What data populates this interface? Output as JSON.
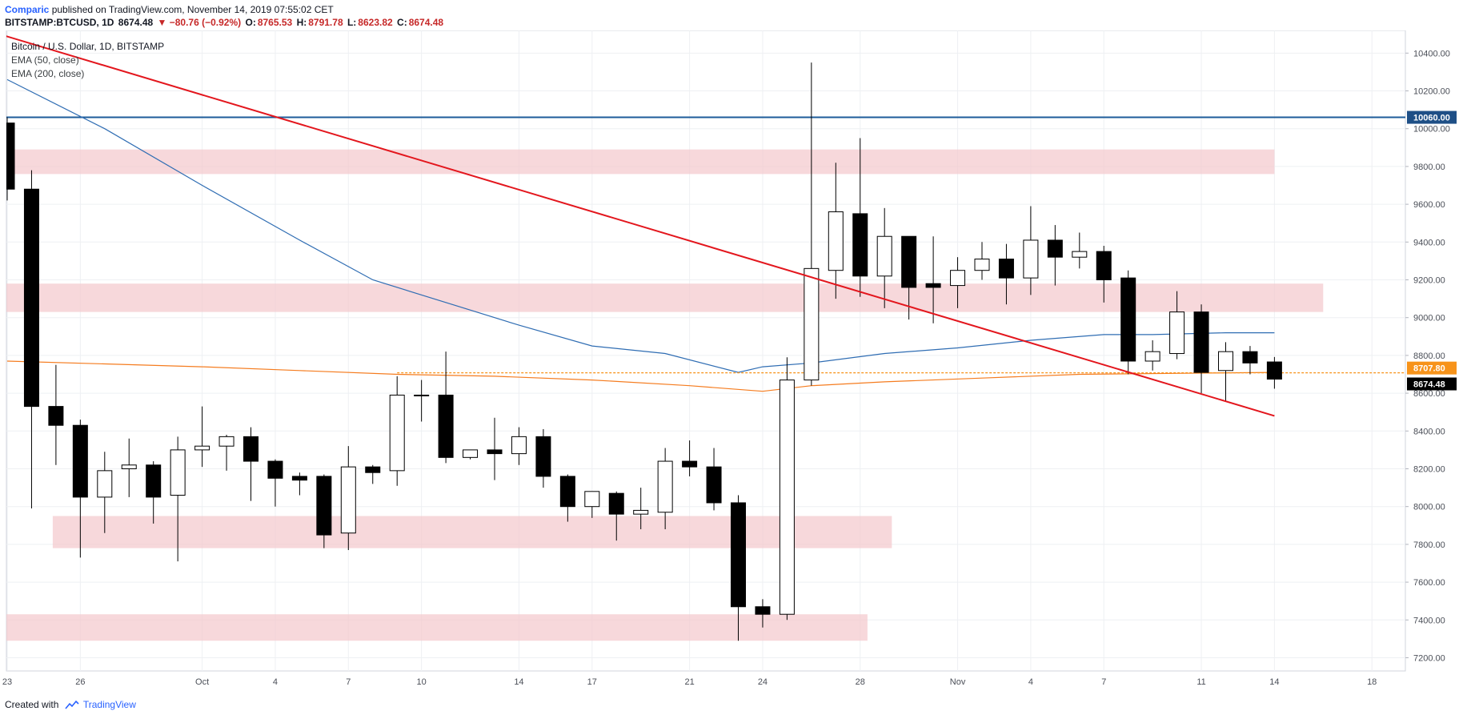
{
  "header": {
    "author": "Comparic",
    "published_text": "published on TradingView.com, November 14, 2019 07:55:02 CET"
  },
  "quote": {
    "symbol": "BITSTAMP:BTCUSD, 1D",
    "last": "8674.48",
    "change": "▼ −80.76 (−0.92%)",
    "o_label": "O:",
    "o": "8765.53",
    "h_label": "H:",
    "h": "8791.78",
    "l_label": "L:",
    "l": "8623.82",
    "c_label": "C:",
    "c": "8674.48"
  },
  "legend": {
    "main": "Bitcoin / U.S. Dollar, 1D, BITSTAMP",
    "ema50": "EMA (50, close)",
    "ema200": "EMA (200, close)"
  },
  "footer": {
    "created_with": "Created with",
    "brand": "TradingView"
  },
  "colors": {
    "up_fill": "#ffffff",
    "down_fill": "#000000",
    "candle_border": "#000000",
    "zone": "#f4c7cc",
    "trendline": "#e3161d",
    "resistance": "#1e5c9a",
    "ema50": "#2f6db3",
    "ema200": "#f57c1f",
    "price_tag_last": "#000000",
    "price_tag_level": "#f7931a",
    "price_tag_resistance": "#1e4f86"
  },
  "chart_data": {
    "type": "candlestick",
    "title": "Bitcoin / U.S. Dollar, 1D, BITSTAMP",
    "ylim": [
      7130,
      10520
    ],
    "y_ticks": [
      7200,
      7400,
      7600,
      7800,
      8000,
      8200,
      8400,
      8600,
      8800,
      9000,
      9200,
      9400,
      9600,
      9800,
      10000,
      10200,
      10400
    ],
    "y_tick_labels": [
      "7200.00",
      "7400.00",
      "7600.00",
      "7800.00",
      "8000.00",
      "8200.00",
      "8400.00",
      "8600.00",
      "8800.00",
      "9000.00",
      "9200.00",
      "9400.00",
      "9600.00",
      "9800.00",
      "10000.00",
      "10200.00",
      "10400.00"
    ],
    "x_ticks": [
      {
        "day": 0,
        "label": "23"
      },
      {
        "day": 3,
        "label": "26"
      },
      {
        "day": 8,
        "label": "Oct"
      },
      {
        "day": 11,
        "label": "4"
      },
      {
        "day": 14,
        "label": "7"
      },
      {
        "day": 17,
        "label": "10"
      },
      {
        "day": 21,
        "label": "14"
      },
      {
        "day": 24,
        "label": "17"
      },
      {
        "day": 28,
        "label": "21"
      },
      {
        "day": 31,
        "label": "24"
      },
      {
        "day": 35,
        "label": "28"
      },
      {
        "day": 39,
        "label": "Nov"
      },
      {
        "day": 42,
        "label": "4"
      },
      {
        "day": 45,
        "label": "7"
      },
      {
        "day": 49,
        "label": "11"
      },
      {
        "day": 52,
        "label": "14"
      },
      {
        "day": 56,
        "label": "18"
      }
    ],
    "candles": [
      {
        "o": 10030,
        "h": 10060,
        "l": 9620,
        "c": 9680
      },
      {
        "o": 9680,
        "h": 9780,
        "l": 7990,
        "c": 8530
      },
      {
        "o": 8530,
        "h": 8750,
        "l": 8220,
        "c": 8430
      },
      {
        "o": 8430,
        "h": 8460,
        "l": 7730,
        "c": 8050
      },
      {
        "o": 8050,
        "h": 8290,
        "l": 7860,
        "c": 8190
      },
      {
        "o": 8200,
        "h": 8360,
        "l": 8050,
        "c": 8220
      },
      {
        "o": 8220,
        "h": 8240,
        "l": 7910,
        "c": 8050
      },
      {
        "o": 8060,
        "h": 8370,
        "l": 7710,
        "c": 8300
      },
      {
        "o": 8300,
        "h": 8530,
        "l": 8210,
        "c": 8320
      },
      {
        "o": 8320,
        "h": 8380,
        "l": 8190,
        "c": 8370
      },
      {
        "o": 8370,
        "h": 8420,
        "l": 8030,
        "c": 8240
      },
      {
        "o": 8240,
        "h": 8250,
        "l": 8000,
        "c": 8150
      },
      {
        "o": 8160,
        "h": 8180,
        "l": 8060,
        "c": 8140
      },
      {
        "o": 8160,
        "h": 8170,
        "l": 7780,
        "c": 7850
      },
      {
        "o": 7860,
        "h": 8320,
        "l": 7770,
        "c": 8210
      },
      {
        "o": 8210,
        "h": 8220,
        "l": 8120,
        "c": 8180
      },
      {
        "o": 8190,
        "h": 8690,
        "l": 8110,
        "c": 8590
      },
      {
        "o": 8590,
        "h": 8670,
        "l": 8450,
        "c": 8590
      },
      {
        "o": 8590,
        "h": 8820,
        "l": 8230,
        "c": 8260
      },
      {
        "o": 8260,
        "h": 8300,
        "l": 8250,
        "c": 8300
      },
      {
        "o": 8300,
        "h": 8470,
        "l": 8140,
        "c": 8280
      },
      {
        "o": 8280,
        "h": 8420,
        "l": 8220,
        "c": 8370
      },
      {
        "o": 8370,
        "h": 8410,
        "l": 8100,
        "c": 8160
      },
      {
        "o": 8160,
        "h": 8170,
        "l": 7920,
        "c": 8000
      },
      {
        "o": 8000,
        "h": 8060,
        "l": 7940,
        "c": 8080
      },
      {
        "o": 8070,
        "h": 8080,
        "l": 7820,
        "c": 7960
      },
      {
        "o": 7960,
        "h": 8100,
        "l": 7880,
        "c": 7980
      },
      {
        "o": 7970,
        "h": 8310,
        "l": 7880,
        "c": 8240
      },
      {
        "o": 8240,
        "h": 8350,
        "l": 8160,
        "c": 8210
      },
      {
        "o": 8210,
        "h": 8310,
        "l": 7980,
        "c": 8020
      },
      {
        "o": 8020,
        "h": 8060,
        "l": 7290,
        "c": 7470
      },
      {
        "o": 7470,
        "h": 7510,
        "l": 7360,
        "c": 7430
      },
      {
        "o": 7430,
        "h": 8790,
        "l": 7400,
        "c": 8670
      },
      {
        "o": 8670,
        "h": 10350,
        "l": 8640,
        "c": 9260
      },
      {
        "o": 9250,
        "h": 9820,
        "l": 9100,
        "c": 9560
      },
      {
        "o": 9550,
        "h": 9950,
        "l": 9110,
        "c": 9220
      },
      {
        "o": 9220,
        "h": 9580,
        "l": 9050,
        "c": 9430
      },
      {
        "o": 9430,
        "h": 9430,
        "l": 8990,
        "c": 9160
      },
      {
        "o": 9180,
        "h": 9430,
        "l": 8970,
        "c": 9160
      },
      {
        "o": 9170,
        "h": 9320,
        "l": 9050,
        "c": 9250
      },
      {
        "o": 9250,
        "h": 9400,
        "l": 9200,
        "c": 9310
      },
      {
        "o": 9310,
        "h": 9390,
        "l": 9070,
        "c": 9210
      },
      {
        "o": 9210,
        "h": 9590,
        "l": 9120,
        "c": 9410
      },
      {
        "o": 9410,
        "h": 9490,
        "l": 9170,
        "c": 9320
      },
      {
        "o": 9320,
        "h": 9450,
        "l": 9260,
        "c": 9350
      },
      {
        "o": 9350,
        "h": 9380,
        "l": 9080,
        "c": 9200
      },
      {
        "o": 9210,
        "h": 9250,
        "l": 8700,
        "c": 8770
      },
      {
        "o": 8770,
        "h": 8880,
        "l": 8720,
        "c": 8820
      },
      {
        "o": 8810,
        "h": 9140,
        "l": 8780,
        "c": 9030
      },
      {
        "o": 9030,
        "h": 9070,
        "l": 8600,
        "c": 8710
      },
      {
        "o": 8720,
        "h": 8870,
        "l": 8560,
        "c": 8820
      },
      {
        "o": 8820,
        "h": 8850,
        "l": 8700,
        "c": 8760
      },
      {
        "o": 8765.53,
        "h": 8791.78,
        "l": 8623.82,
        "c": 8674.48
      }
    ],
    "ema50": [
      [
        0,
        10260
      ],
      [
        4,
        10000
      ],
      [
        8,
        9700
      ],
      [
        12,
        9410
      ],
      [
        15,
        9200
      ],
      [
        18,
        9080
      ],
      [
        21,
        8960
      ],
      [
        24,
        8850
      ],
      [
        27,
        8810
      ],
      [
        30,
        8710
      ],
      [
        31,
        8740
      ],
      [
        33,
        8760
      ],
      [
        36,
        8810
      ],
      [
        39,
        8840
      ],
      [
        42,
        8880
      ],
      [
        45,
        8910
      ],
      [
        47,
        8910
      ],
      [
        50,
        8920
      ],
      [
        52,
        8920
      ]
    ],
    "ema200": [
      [
        0,
        8770
      ],
      [
        4,
        8755
      ],
      [
        8,
        8740
      ],
      [
        12,
        8720
      ],
      [
        16,
        8700
      ],
      [
        20,
        8690
      ],
      [
        24,
        8670
      ],
      [
        28,
        8640
      ],
      [
        31,
        8610
      ],
      [
        33,
        8640
      ],
      [
        36,
        8660
      ],
      [
        40,
        8680
      ],
      [
        44,
        8700
      ],
      [
        48,
        8705
      ],
      [
        52,
        8710
      ]
    ],
    "trendline": [
      [
        -0.05,
        10490
      ],
      [
        52,
        8480
      ]
    ],
    "resistance_line": 10060,
    "dotted_level": {
      "value": 8707.8,
      "from_day": 16
    },
    "zones": [
      {
        "from": -0.1,
        "to": 52,
        "low": 9760,
        "high": 9890
      },
      {
        "from": -0.1,
        "to": 54,
        "low": 9030,
        "high": 9180
      },
      {
        "from": 2,
        "to": 36.3,
        "low": 7780,
        "high": 7950
      },
      {
        "from": -0.1,
        "to": 35.3,
        "low": 7290,
        "high": 7430
      }
    ],
    "price_tags": [
      {
        "value": 10060,
        "label": "10060.00",
        "kind": "resistance"
      },
      {
        "value": 8707.8,
        "label": "8707.80",
        "kind": "level"
      },
      {
        "value": 8674.48,
        "label": "8674.48",
        "kind": "last"
      }
    ]
  }
}
